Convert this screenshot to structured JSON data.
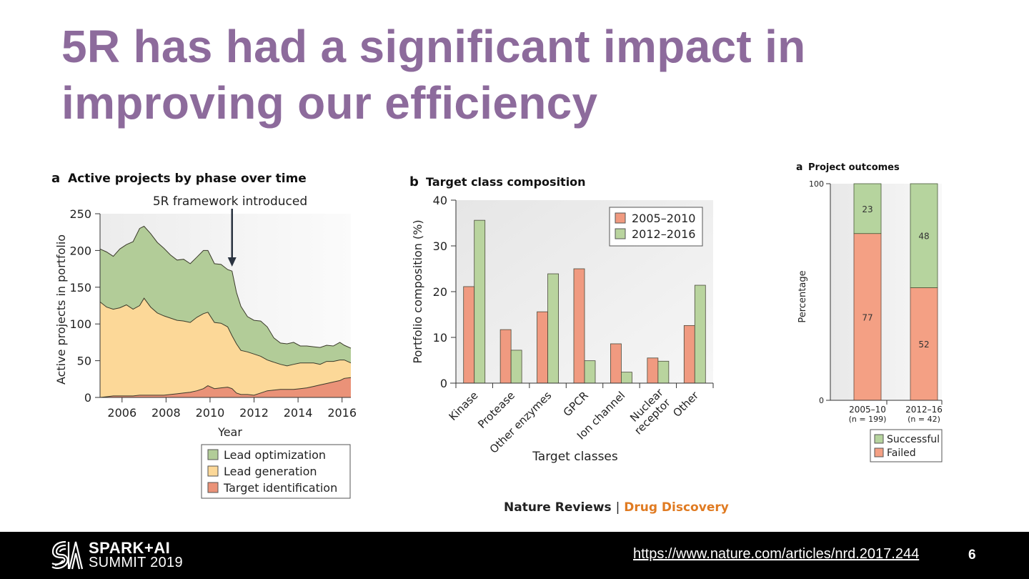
{
  "slide": {
    "title_line1": "5R has had a significant impact in",
    "title_line2": "improving our efficiency",
    "title_color": "#8d6b9c",
    "credit_journal": "Nature Reviews",
    "credit_separator": "|",
    "credit_section": "Drug Discovery",
    "footer": {
      "logo_line1": "SPARK+AI",
      "logo_line2": "SUMMIT 2019",
      "link_text": "https://www.nature.com/articles/nrd.2017.244",
      "page_number": "6"
    }
  },
  "colors": {
    "lead_optimization": "#b2cc98",
    "lead_generation": "#fcd898",
    "target_identification": "#ea9278",
    "period_2005_2010": "#f09a80",
    "period_2012_2016": "#b9d49e",
    "successful": "#b6d49e",
    "failed": "#f4a084"
  },
  "chart_data": [
    {
      "type": "area",
      "panel_letter": "a",
      "title": "Active projects by phase over time",
      "annotation": "5R framework introduced",
      "annotation_x": 2011.0,
      "xlabel": "Year",
      "ylabel": "Active projects in portfolio",
      "xlim": [
        2005.0,
        2016.4
      ],
      "ylim": [
        0,
        250
      ],
      "xticks": [
        "2006",
        "2008",
        "2010",
        "2012",
        "2014",
        "2016"
      ],
      "yticks": [
        "0",
        "50",
        "100",
        "150",
        "200",
        "250"
      ],
      "stacked": true,
      "legend_position": "bottom-right",
      "x": [
        2005.0,
        2005.3,
        2005.6,
        2005.9,
        2006.2,
        2006.5,
        2006.8,
        2007.0,
        2007.3,
        2007.6,
        2007.9,
        2008.2,
        2008.5,
        2008.8,
        2009.1,
        2009.4,
        2009.7,
        2009.9,
        2010.2,
        2010.5,
        2010.8,
        2011.0,
        2011.2,
        2011.4,
        2011.7,
        2012.0,
        2012.3,
        2012.6,
        2012.9,
        2013.2,
        2013.5,
        2013.8,
        2014.1,
        2014.4,
        2014.7,
        2015.0,
        2015.3,
        2015.6,
        2015.9,
        2016.1,
        2016.4
      ],
      "series": [
        {
          "name": "Target identification",
          "values": [
            0,
            1,
            2,
            2,
            2,
            2,
            3,
            3,
            3,
            3,
            3,
            4,
            5,
            6,
            7,
            9,
            12,
            16,
            12,
            13,
            14,
            12,
            6,
            4,
            4,
            3,
            6,
            9,
            10,
            11,
            11,
            11,
            12,
            13,
            15,
            17,
            19,
            21,
            23,
            26,
            27
          ]
        },
        {
          "name": "Lead generation",
          "values": [
            130,
            122,
            118,
            120,
            124,
            118,
            122,
            132,
            120,
            112,
            108,
            104,
            100,
            98,
            95,
            100,
            102,
            100,
            90,
            88,
            82,
            72,
            67,
            60,
            58,
            56,
            50,
            42,
            38,
            34,
            32,
            34,
            35,
            34,
            32,
            28,
            30,
            28,
            28,
            25,
            20
          ]
        },
        {
          "name": "Lead optimization",
          "values": [
            72,
            75,
            72,
            80,
            82,
            92,
            105,
            98,
            100,
            96,
            92,
            86,
            82,
            84,
            80,
            82,
            86,
            84,
            80,
            80,
            78,
            88,
            70,
            60,
            48,
            46,
            48,
            45,
            33,
            29,
            30,
            30,
            23,
            23,
            22,
            23,
            22,
            21,
            24,
            20,
            20
          ]
        }
      ]
    },
    {
      "type": "bar",
      "panel_letter": "b",
      "title": "Target class composition",
      "xlabel": "Target classes",
      "ylabel": "Portfolio composition (%)",
      "ylim": [
        0,
        40
      ],
      "yticks": [
        "0",
        "10",
        "20",
        "30",
        "40"
      ],
      "legend_position": "top-right",
      "categories": [
        "Kinase",
        "Protease",
        "Other enzymes",
        "GPCR",
        "Ion channel",
        "Nuclear receptor",
        "Other"
      ],
      "series": [
        {
          "name": "2005–2010",
          "values": [
            21.1,
            11.7,
            15.6,
            25.0,
            8.6,
            5.5,
            12.6
          ]
        },
        {
          "name": "2012–2016",
          "values": [
            35.6,
            7.2,
            23.9,
            4.9,
            2.4,
            4.8,
            21.4
          ]
        }
      ]
    },
    {
      "type": "bar",
      "stacked": true,
      "panel_letter": "a",
      "title": "Project outcomes",
      "ylabel": "Percentage",
      "ylim": [
        0,
        100
      ],
      "yticks": [
        "0",
        "100"
      ],
      "legend_position": "bottom-right",
      "categories": [
        "2005–10",
        "2012–16"
      ],
      "category_sublabels": [
        "(n = 199)",
        "(n = 42)"
      ],
      "series": [
        {
          "name": "Failed",
          "values": [
            77,
            52
          ]
        },
        {
          "name": "Successful",
          "values": [
            23,
            48
          ]
        }
      ],
      "legend": [
        "Successful",
        "Failed"
      ]
    }
  ]
}
